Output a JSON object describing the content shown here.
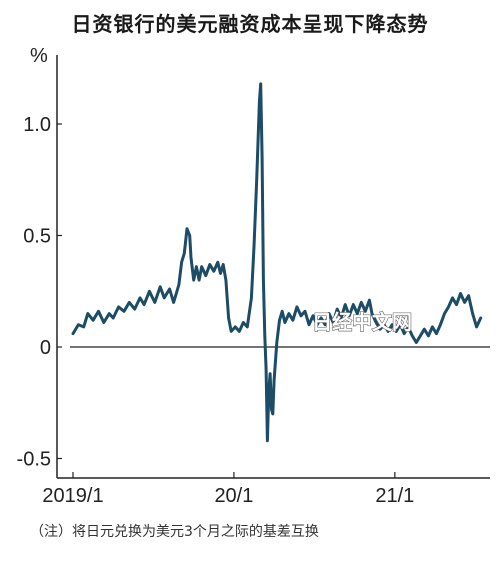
{
  "header": {
    "title": "日资银行的美元融资成本呈现下降态势",
    "note": "（注）将日元兑换为美元3个月之际的基差互换",
    "watermark": "日经中文网"
  },
  "colors": {
    "line": "#1c4c66",
    "axis": "#222222",
    "text": "#222222"
  },
  "chart_data": {
    "type": "line",
    "title": "日资银行的美元融资成本呈现下降态势",
    "ylabel": "%",
    "ylim": [
      -0.5,
      1.3
    ],
    "yticks": [
      {
        "value": 1.0,
        "label": "1.0"
      },
      {
        "value": 0.5,
        "label": "0.5"
      },
      {
        "value": 0,
        "label": "0"
      },
      {
        "value": -0.5,
        "label": "-0.5"
      }
    ],
    "xlim": [
      0,
      30.5
    ],
    "xticks": [
      {
        "value": 0,
        "label": "2019/1"
      },
      {
        "value": 12,
        "label": "20/1"
      },
      {
        "value": 24,
        "label": "21/1"
      }
    ],
    "x_unit": "months since 2019/1",
    "legend": "none",
    "grid": false,
    "series": [
      {
        "values": [
          [
            0.0,
            0.06
          ],
          [
            0.4,
            0.1
          ],
          [
            0.8,
            0.09
          ],
          [
            1.1,
            0.15
          ],
          [
            1.5,
            0.12
          ],
          [
            1.9,
            0.16
          ],
          [
            2.3,
            0.11
          ],
          [
            2.7,
            0.15
          ],
          [
            3.0,
            0.13
          ],
          [
            3.4,
            0.18
          ],
          [
            3.8,
            0.16
          ],
          [
            4.2,
            0.2
          ],
          [
            4.6,
            0.17
          ],
          [
            5.0,
            0.22
          ],
          [
            5.3,
            0.19
          ],
          [
            5.7,
            0.25
          ],
          [
            6.1,
            0.2
          ],
          [
            6.5,
            0.27
          ],
          [
            6.8,
            0.22
          ],
          [
            7.2,
            0.26
          ],
          [
            7.5,
            0.2
          ],
          [
            7.7,
            0.24
          ],
          [
            7.9,
            0.28
          ],
          [
            8.1,
            0.38
          ],
          [
            8.3,
            0.42
          ],
          [
            8.5,
            0.53
          ],
          [
            8.7,
            0.5
          ],
          [
            8.8,
            0.4
          ],
          [
            9.0,
            0.3
          ],
          [
            9.2,
            0.36
          ],
          [
            9.4,
            0.3
          ],
          [
            9.6,
            0.36
          ],
          [
            9.9,
            0.32
          ],
          [
            10.2,
            0.37
          ],
          [
            10.5,
            0.34
          ],
          [
            10.8,
            0.38
          ],
          [
            11.0,
            0.33
          ],
          [
            11.2,
            0.37
          ],
          [
            11.4,
            0.3
          ],
          [
            11.6,
            0.13
          ],
          [
            11.8,
            0.07
          ],
          [
            12.1,
            0.09
          ],
          [
            12.4,
            0.07
          ],
          [
            12.7,
            0.11
          ],
          [
            13.0,
            0.09
          ],
          [
            13.3,
            0.22
          ],
          [
            13.5,
            0.45
          ],
          [
            13.7,
            0.75
          ],
          [
            13.9,
            1.1
          ],
          [
            14.0,
            1.18
          ],
          [
            14.1,
            0.85
          ],
          [
            14.2,
            0.3
          ],
          [
            14.3,
            0.05
          ],
          [
            14.4,
            -0.1
          ],
          [
            14.5,
            -0.42
          ],
          [
            14.6,
            -0.2
          ],
          [
            14.7,
            -0.12
          ],
          [
            14.8,
            -0.28
          ],
          [
            14.9,
            -0.3
          ],
          [
            15.0,
            -0.15
          ],
          [
            15.2,
            0.02
          ],
          [
            15.4,
            0.12
          ],
          [
            15.6,
            0.16
          ],
          [
            15.8,
            0.11
          ],
          [
            16.1,
            0.15
          ],
          [
            16.4,
            0.12
          ],
          [
            16.7,
            0.18
          ],
          [
            17.0,
            0.14
          ],
          [
            17.3,
            0.16
          ],
          [
            17.6,
            0.1
          ],
          [
            17.9,
            0.14
          ],
          [
            18.2,
            0.1
          ],
          [
            18.5,
            0.13
          ],
          [
            18.8,
            0.1
          ],
          [
            19.1,
            0.15
          ],
          [
            19.4,
            0.11
          ],
          [
            19.7,
            0.17
          ],
          [
            20.0,
            0.13
          ],
          [
            20.3,
            0.19
          ],
          [
            20.6,
            0.14
          ],
          [
            20.9,
            0.19
          ],
          [
            21.2,
            0.15
          ],
          [
            21.5,
            0.2
          ],
          [
            21.8,
            0.16
          ],
          [
            22.1,
            0.21
          ],
          [
            22.3,
            0.15
          ],
          [
            22.6,
            0.11
          ],
          [
            22.9,
            0.08
          ],
          [
            23.2,
            0.1
          ],
          [
            23.5,
            0.07
          ],
          [
            23.8,
            0.1
          ],
          [
            24.1,
            0.07
          ],
          [
            24.4,
            0.1
          ],
          [
            24.7,
            0.06
          ],
          [
            25.0,
            0.09
          ],
          [
            25.3,
            0.05
          ],
          [
            25.6,
            0.02
          ],
          [
            25.9,
            0.05
          ],
          [
            26.2,
            0.08
          ],
          [
            26.5,
            0.05
          ],
          [
            26.8,
            0.09
          ],
          [
            27.1,
            0.06
          ],
          [
            27.4,
            0.1
          ],
          [
            27.7,
            0.15
          ],
          [
            28.0,
            0.18
          ],
          [
            28.3,
            0.22
          ],
          [
            28.6,
            0.19
          ],
          [
            28.9,
            0.24
          ],
          [
            29.2,
            0.2
          ],
          [
            29.5,
            0.23
          ],
          [
            29.8,
            0.15
          ],
          [
            30.1,
            0.09
          ],
          [
            30.4,
            0.13
          ]
        ]
      }
    ]
  }
}
